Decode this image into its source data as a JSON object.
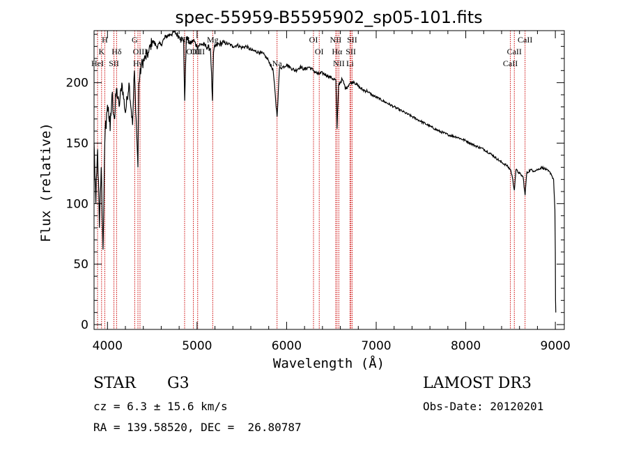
{
  "chart_data": {
    "type": "line",
    "title": "spec-55959-B5595902_sp05-101.fits",
    "xlabel": "Wavelength (Å)",
    "ylabel": "Flux (relative)",
    "xlim": [
      3850,
      9100
    ],
    "ylim": [
      -4,
      243
    ],
    "x_ticks": [
      4000,
      5000,
      6000,
      7000,
      8000,
      9000
    ],
    "y_ticks": [
      0,
      50,
      100,
      150,
      200
    ],
    "grid": false,
    "series": [
      {
        "name": "flux",
        "x": [
          3850,
          3870,
          3890,
          3910,
          3930,
          3950,
          3970,
          3990,
          4010,
          4030,
          4050,
          4080,
          4100,
          4130,
          4160,
          4200,
          4240,
          4280,
          4300,
          4330,
          4340,
          4350,
          4380,
          4420,
          4460,
          4500,
          4550,
          4600,
          4650,
          4700,
          4750,
          4800,
          4850,
          4862,
          4880,
          4920,
          4960,
          5000,
          5050,
          5100,
          5150,
          5172,
          5184,
          5200,
          5250,
          5300,
          5350,
          5400,
          5450,
          5500,
          5550,
          5600,
          5650,
          5700,
          5750,
          5800,
          5850,
          5893,
          5920,
          5960,
          6000,
          6050,
          6100,
          6150,
          6200,
          6250,
          6300,
          6350,
          6400,
          6450,
          6500,
          6550,
          6563,
          6580,
          6620,
          6660,
          6700,
          6750,
          6800,
          6850,
          6900,
          6950,
          7000,
          7100,
          7200,
          7300,
          7400,
          7500,
          7600,
          7700,
          7800,
          7900,
          8000,
          8100,
          8200,
          8300,
          8400,
          8450,
          8500,
          8520,
          8542,
          8560,
          8600,
          8640,
          8662,
          8680,
          8720,
          8760,
          8800,
          8850,
          8900,
          8950,
          8980,
          8995,
          9000,
          9002,
          9005
        ],
        "y": [
          150,
          100,
          145,
          80,
          130,
          62,
          150,
          175,
          180,
          160,
          190,
          170,
          195,
          180,
          200,
          175,
          200,
          165,
          210,
          150,
          130,
          200,
          215,
          220,
          225,
          235,
          230,
          232,
          238,
          240,
          242,
          238,
          235,
          185,
          238,
          232,
          235,
          230,
          232,
          230,
          228,
          185,
          225,
          230,
          232,
          233,
          232,
          230,
          231,
          229,
          230,
          227,
          226,
          225,
          223,
          218,
          210,
          172,
          212,
          213,
          215,
          212,
          210,
          213,
          211,
          213,
          210,
          207,
          208,
          206,
          204,
          202,
          162,
          198,
          203,
          195,
          199,
          201,
          197,
          194,
          193,
          190,
          188,
          184,
          180,
          176,
          172,
          168,
          164,
          160,
          157,
          155,
          152,
          148,
          145,
          140,
          134,
          132,
          128,
          122,
          111,
          128,
          125,
          122,
          107,
          125,
          128,
          127,
          128,
          130,
          128,
          125,
          120,
          95,
          60,
          20,
          10
        ]
      }
    ],
    "lines": [
      {
        "wavelength": 3889,
        "label": "HeI",
        "row": 3
      },
      {
        "wavelength": 3934,
        "label": "K",
        "row": 2
      },
      {
        "wavelength": 3970,
        "label": "H",
        "row": 1
      },
      {
        "wavelength": 4072,
        "label": "SII",
        "row": 3
      },
      {
        "wavelength": 4102,
        "label": "Hδ",
        "row": 2
      },
      {
        "wavelength": 4304,
        "label": "G",
        "row": 1
      },
      {
        "wavelength": 4340,
        "label": "Hγ",
        "row": 3
      },
      {
        "wavelength": 4363,
        "label": "OIII",
        "row": 2
      },
      {
        "wavelength": 4861,
        "label": "Hβ",
        "row": 1
      },
      {
        "wavelength": 4959,
        "label": "OIII",
        "row": 2
      },
      {
        "wavelength": 5007,
        "label": "OIII",
        "row": 2
      },
      {
        "wavelength": 5175,
        "label": "Mg",
        "row": 1
      },
      {
        "wavelength": 5893,
        "label": "Na",
        "row": 3
      },
      {
        "wavelength": 6300,
        "label": "OI",
        "row": 1
      },
      {
        "wavelength": 6364,
        "label": "OI",
        "row": 2
      },
      {
        "wavelength": 6548,
        "label": "NII",
        "row": 1
      },
      {
        "wavelength": 6563,
        "label": "Hα",
        "row": 2
      },
      {
        "wavelength": 6583,
        "label": "NII",
        "row": 3
      },
      {
        "wavelength": 6707,
        "label": "Li",
        "row": 3
      },
      {
        "wavelength": 6717,
        "label": "SII",
        "row": 2
      },
      {
        "wavelength": 6731,
        "label": "SII",
        "row": 1
      },
      {
        "wavelength": 8498,
        "label": "CaII",
        "row": 3
      },
      {
        "wavelength": 8542,
        "label": "CaII",
        "row": 2
      },
      {
        "wavelength": 8662,
        "label": "CaII",
        "row": 1
      }
    ],
    "line_color": "#cc0000"
  },
  "info": {
    "object_class": "STAR",
    "subclass": "G3",
    "redshift": "cz = 6.3 ± 15.6 km/s",
    "coords": "RA = 139.58520, DEC =  26.80787",
    "survey": "LAMOST DR3",
    "obs_date": "Obs-Date: 20120201"
  }
}
